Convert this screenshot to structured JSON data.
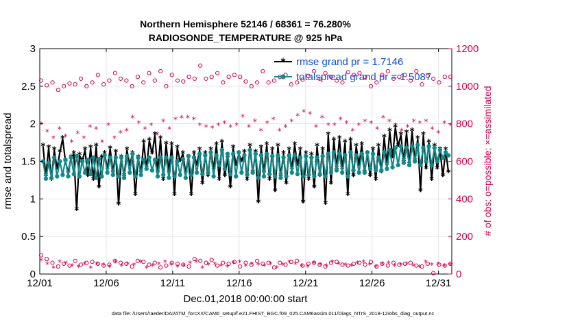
{
  "chart_data": {
    "type": "line",
    "title": "Northern Hemisphere 52146 / 68361 = 76.280%",
    "subtitle": "RADIOSONDE_TEMPERATURE @ 925 hPa",
    "xlabel": "Dec.01,2018 00:00:00 start",
    "ylabel": "rmse and totalspread",
    "ylabel_right": "# of obs: o=possible; ×=assimilated",
    "xlim": [
      0,
      31
    ],
    "ylim": [
      0,
      3
    ],
    "ylim_right": [
      0,
      1200
    ],
    "x_ticks": [
      0,
      5,
      10,
      15,
      20,
      25,
      30
    ],
    "x_tick_labels": [
      "12/01",
      "12/06",
      "12/11",
      "12/16",
      "12/21",
      "12/26",
      "12/31"
    ],
    "y_ticks": [
      "0",
      "0.5",
      "1",
      "1.5",
      "2",
      "2.5",
      "3"
    ],
    "y_right_ticks": [
      "0",
      "200",
      "400",
      "600",
      "800",
      "1000",
      "1200"
    ],
    "grid": true,
    "legend_position": "top-right",
    "colors": {
      "rmse": "#000000",
      "totalspread": "#138a8a",
      "obs": "#d6004c",
      "legend_text": "#0a4fe0"
    },
    "series": [
      {
        "name": "rmse grand pr = 1.7146",
        "axis": "left",
        "values": [
          1.7,
          1.3,
          1.68,
          1.25,
          1.65,
          1.4,
          1.62,
          1.8,
          1.5,
          1.35,
          1.55,
          1.6,
          0.85,
          1.58,
          1.5,
          1.65,
          1.3,
          1.68,
          1.25,
          1.7,
          1.15,
          1.55,
          1.6,
          1.4,
          1.67,
          1.35,
          1.62,
          0.92,
          1.55,
          1.3,
          1.65,
          1.45,
          1.6,
          1.05,
          1.55,
          1.35,
          1.75,
          1.4,
          1.78,
          1.6,
          1.85,
          1.35,
          1.8,
          1.25,
          1.73,
          1.35,
          1.72,
          1.05,
          1.68,
          1.5,
          1.6,
          1.35,
          1.55,
          1.05,
          1.6,
          1.45,
          1.65,
          1.2,
          1.6,
          1.3,
          1.65,
          1.4,
          1.72,
          1.25,
          1.75,
          1.3,
          1.55,
          1.15,
          1.68,
          1.45,
          1.6,
          1.5,
          1.62,
          1.25,
          1.7,
          1.35,
          1.62,
          0.95,
          1.68,
          1.35,
          1.72,
          1.25,
          1.65,
          1.1,
          1.7,
          1.3,
          1.6,
          1.2,
          1.65,
          1.4,
          1.72,
          1.45,
          1.65,
          0.95,
          1.6,
          1.25,
          1.58,
          1.15,
          1.7,
          1.3,
          1.65,
          0.93,
          1.85,
          1.2,
          1.78,
          1.4,
          1.8,
          1.4,
          1.75,
          1.05,
          1.78,
          1.3,
          1.7,
          1.45,
          1.72,
          1.35,
          1.6,
          1.3,
          1.65,
          1.25,
          1.7,
          1.35,
          1.82,
          1.45,
          1.9,
          1.55,
          1.95,
          1.7,
          1.85,
          1.5,
          1.88,
          1.45,
          1.9,
          1.5,
          1.8,
          1.1,
          1.85,
          1.4,
          1.75,
          1.25,
          1.7,
          1.4,
          1.65,
          1.3,
          1.65,
          1.35
        ]
      },
      {
        "name": "totalspread grand pr = 1.5087",
        "axis": "left",
        "values": [
          1.5,
          1.27,
          1.48,
          1.28,
          1.55,
          1.3,
          1.5,
          1.32,
          1.52,
          1.3,
          1.55,
          1.33,
          1.57,
          1.3,
          1.5,
          1.35,
          1.52,
          1.33,
          1.55,
          1.28,
          1.53,
          1.3,
          1.58,
          1.35,
          1.55,
          1.32,
          1.55,
          1.3,
          1.55,
          1.28,
          1.57,
          1.35,
          1.6,
          1.3,
          1.55,
          1.32,
          1.52,
          1.4,
          1.55,
          1.38,
          1.52,
          1.3,
          1.55,
          1.32,
          1.55,
          1.28,
          1.55,
          1.3,
          1.5,
          1.32,
          1.53,
          1.28,
          1.57,
          1.32,
          1.55,
          1.35,
          1.6,
          1.33,
          1.58,
          1.35,
          1.62,
          1.3,
          1.58,
          1.45,
          1.65,
          1.4,
          1.6,
          1.33,
          1.6,
          1.3,
          1.62,
          1.35,
          1.58,
          1.32,
          1.65,
          1.35,
          1.6,
          1.28,
          1.58,
          1.3,
          1.6,
          1.33,
          1.57,
          1.3,
          1.58,
          1.28,
          1.55,
          1.3,
          1.58,
          1.35,
          1.58,
          1.33,
          1.55,
          1.3,
          1.57,
          1.32,
          1.55,
          1.3,
          1.55,
          1.33,
          1.57,
          1.3,
          1.6,
          1.35,
          1.62,
          1.38,
          1.6,
          1.35,
          1.58,
          1.3,
          1.62,
          1.38,
          1.58,
          1.35,
          1.6,
          1.35,
          1.62,
          1.4,
          1.6,
          1.38,
          1.55,
          1.38,
          1.62,
          1.4,
          1.65,
          1.42,
          1.68,
          1.45,
          1.7,
          1.48,
          1.68,
          1.45,
          1.7,
          1.5,
          1.72,
          1.45,
          1.68,
          1.5,
          1.7,
          1.45,
          1.68,
          1.5,
          1.65,
          1.55,
          1.62,
          1.58
        ]
      }
    ],
    "obs_possible": {
      "axis": "right",
      "legend_name": "# of obs possible",
      "top_values": [
        1030,
        1005,
        1020,
        980,
        1000,
        1015,
        1010,
        1040,
        1000,
        1020,
        1060,
        1010,
        1030,
        1070,
        1040,
        1030,
        1000,
        1050,
        1020,
        1070,
        1030,
        1080,
        1000,
        1060,
        1030,
        1025,
        1050,
        1040,
        1110,
        1040,
        1050,
        1070,
        1020,
        1050,
        1060,
        1050,
        1025,
        1000,
        1020,
        1080,
        1020,
        1030,
        1050,
        1060,
        1010,
        1020,
        1035,
        1055,
        1080,
        1040,
        1070,
        1050,
        1030,
        1020,
        1075,
        1060,
        1070,
        1050,
        1000,
        1020,
        1060,
        1080,
        1040,
        1050,
        1060,
        1030,
        1080,
        1010,
        1055,
        1040,
        1020,
        1050,
        1050
      ],
      "low_values": [
        100,
        80,
        60,
        40,
        55,
        45,
        70,
        50,
        60,
        65,
        55,
        45,
        50,
        70,
        60,
        55,
        40,
        70,
        65,
        50,
        60,
        35,
        45,
        60,
        55,
        50,
        40,
        80,
        70,
        60,
        75,
        45,
        60,
        55,
        65,
        40,
        60,
        50,
        70,
        55,
        60,
        35,
        60,
        50,
        65,
        70,
        45,
        55,
        60,
        50,
        40,
        60,
        65,
        50,
        45,
        55,
        60,
        50,
        65,
        40,
        55,
        45,
        60,
        50,
        55,
        60,
        45,
        40,
        55,
        5,
        50,
        45,
        55
      ]
    },
    "obs_assimilated": {
      "axis": "right",
      "legend_name": "# of obs assimilated",
      "top_values": [
        795,
        755,
        720,
        770,
        730,
        700,
        745,
        720,
        780,
        770,
        700,
        790,
        720,
        750,
        760,
        830,
        800,
        770,
        790,
        740,
        810,
        770,
        820,
        830,
        830,
        820,
        790,
        780,
        775,
        790,
        800,
        780,
        790,
        835,
        780,
        810,
        760,
        800,
        820,
        760,
        780,
        810,
        840,
        860,
        850,
        780,
        830,
        790,
        790,
        820,
        800,
        760,
        790,
        810,
        800,
        770,
        830,
        810,
        790,
        760,
        780,
        810,
        800,
        810,
        770,
        750,
        800,
        790
      ],
      "low_values": [
        70,
        50,
        30,
        60,
        55,
        40,
        35,
        50,
        30,
        50,
        45,
        35,
        60,
        40,
        50,
        45,
        60,
        30,
        40,
        50,
        60,
        45,
        35,
        40,
        55,
        60,
        30,
        45,
        50,
        40,
        35,
        55,
        60,
        40,
        50,
        45,
        40,
        50,
        30,
        45,
        60,
        50,
        40,
        35,
        55,
        45,
        40,
        60,
        50,
        45,
        40,
        55,
        60,
        45,
        35,
        50,
        55,
        40,
        45,
        50,
        40,
        35,
        60,
        45,
        50,
        40,
        45
      ]
    },
    "footnote": "data file: /Users/raeder/DAI/ATM_forcXX/CAM6_setup/f.e21.FHIST_BGC.f09_025.CAM6assim.011/Diags_NTrS_2018-12/obs_diag_output.nc"
  }
}
